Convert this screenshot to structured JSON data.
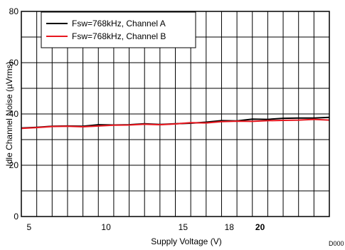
{
  "chart_data": {
    "type": "line",
    "xlabel": "Supply Voltage (V)",
    "ylabel": "Idle Channel Noise (µVrms)",
    "ylim": [
      0,
      80
    ],
    "xlim": [
      4.5,
      24.5
    ],
    "x_ticks": [
      {
        "value": 5,
        "label": "5",
        "bold": false
      },
      {
        "value": 10,
        "label": "10",
        "bold": false
      },
      {
        "value": 15,
        "label": "15",
        "bold": false
      },
      {
        "value": 18,
        "label": "18",
        "bold": false
      },
      {
        "value": 20,
        "label": "20",
        "bold": true
      }
    ],
    "y_ticks": [
      0,
      20,
      40,
      60,
      80
    ],
    "grid_x": [
      4.5,
      5.5,
      6.5,
      7.5,
      8.5,
      9.5,
      10.5,
      11.5,
      12.5,
      13.5,
      14.5,
      15.5,
      16.5,
      17.5,
      18.5,
      19.5,
      20.5,
      21.5,
      22.5,
      23.5,
      24.5
    ],
    "grid_y": [
      0,
      10,
      20,
      30,
      40,
      50,
      60,
      70,
      80
    ],
    "grid": true,
    "legend_position": "top-left",
    "series": [
      {
        "name": "Fsw=768kHz, Channel A",
        "color": "#000000",
        "x": [
          4.5,
          5.5,
          6.5,
          7.5,
          8.5,
          9.5,
          10.5,
          11.5,
          12.5,
          13.5,
          14.5,
          15.5,
          16.5,
          17.5,
          18.5,
          19.5,
          20.5,
          21.5,
          22.5,
          23.5,
          24.5
        ],
        "y": [
          34.5,
          34.8,
          35.2,
          35.3,
          35.2,
          35.8,
          35.7,
          35.8,
          36.2,
          35.9,
          36.2,
          36.4,
          36.8,
          37.4,
          37.3,
          38.0,
          37.9,
          38.3,
          38.4,
          38.4,
          38.7
        ]
      },
      {
        "name": "Fsw=768kHz, Channel B",
        "color": "#e8171f",
        "x": [
          4.5,
          5.5,
          6.5,
          7.5,
          8.5,
          9.5,
          10.5,
          11.5,
          12.5,
          13.5,
          14.5,
          15.5,
          16.5,
          17.5,
          18.5,
          19.5,
          20.5,
          21.5,
          22.5,
          23.5,
          24.5
        ],
        "y": [
          34.4,
          34.7,
          35.1,
          35.2,
          35.0,
          35.3,
          35.6,
          35.7,
          36.0,
          35.8,
          36.1,
          36.6,
          36.5,
          37.0,
          37.2,
          37.1,
          37.4,
          37.5,
          37.6,
          37.9,
          37.6
        ]
      }
    ],
    "corner_label": "D000"
  }
}
